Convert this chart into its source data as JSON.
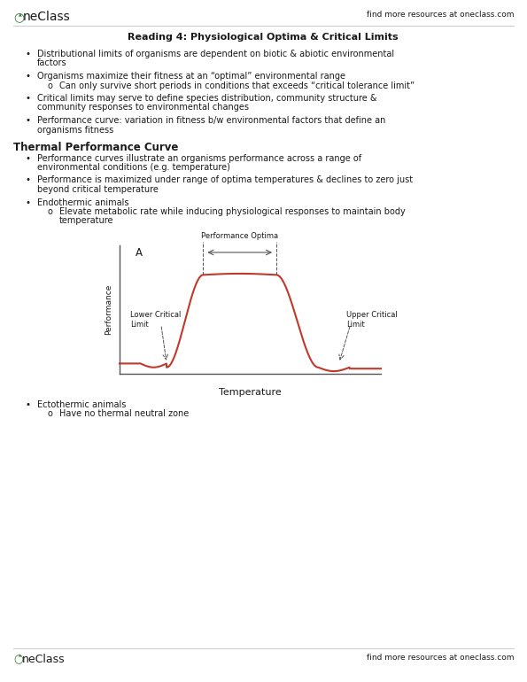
{
  "title": "Reading 4: Physiological Optima & Critical Limits",
  "header_right": "find more resources at oneclass.com",
  "footer_right": "find more resources at oneclass.com",
  "chart_label_A": "A",
  "chart_xlabel": "Temperature",
  "chart_ylabel": "Performance",
  "chart_annotation_optima": "Performance Optima",
  "chart_annotation_lower": "Lower Critical\nLimit",
  "chart_annotation_upper": "Upper Critical\nLimit",
  "curve_color": "#c0392b",
  "text_color": "#1a1a1a",
  "background_color": "#ffffff",
  "logo_green": "#2e7d32",
  "axis_color": "#555555",
  "header_line_color": "#cccccc",
  "body_fontsize": 7.0,
  "title_fontsize": 8.0,
  "section_fontsize": 8.5,
  "header_fontsize": 9.5,
  "chart_fontsize": 6.5
}
